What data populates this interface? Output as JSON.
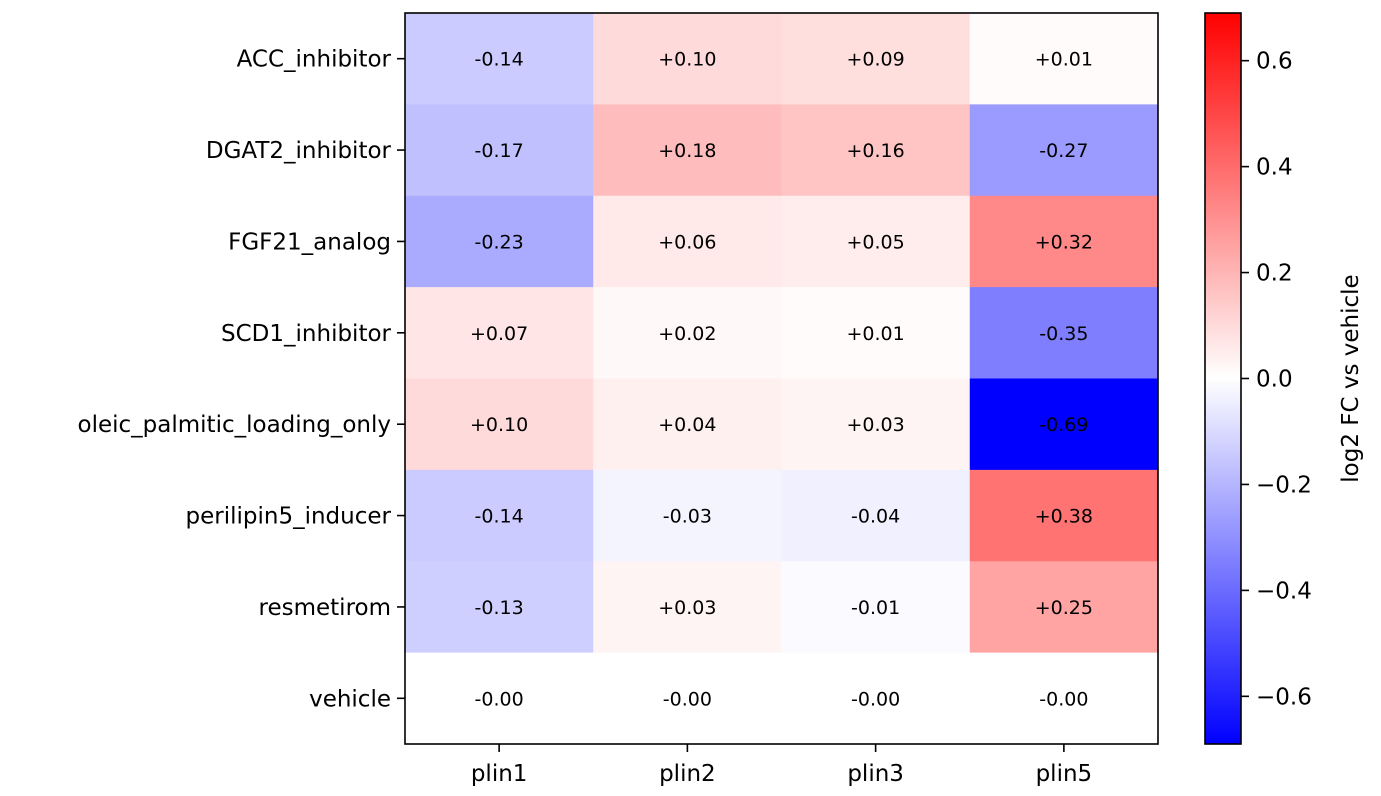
{
  "chart_data": {
    "type": "heatmap",
    "title": "",
    "xlabel": "",
    "ylabel": "",
    "x_categories": [
      "plin1",
      "plin2",
      "plin3",
      "plin5"
    ],
    "y_categories": [
      "ACC_inhibitor",
      "DGAT2_inhibitor",
      "FGF21_analog",
      "SCD1_inhibitor",
      "oleic_palmitic_loading_only",
      "perilipin5_inducer",
      "resmetirom",
      "vehicle"
    ],
    "values": [
      [
        -0.14,
        0.1,
        0.09,
        0.01
      ],
      [
        -0.17,
        0.18,
        0.16,
        -0.27
      ],
      [
        -0.23,
        0.06,
        0.05,
        0.32
      ],
      [
        0.07,
        0.02,
        0.01,
        -0.35
      ],
      [
        0.1,
        0.04,
        0.03,
        -0.69
      ],
      [
        -0.14,
        -0.03,
        -0.04,
        0.38
      ],
      [
        -0.13,
        0.03,
        -0.01,
        0.25
      ],
      [
        -0.0,
        -0.0,
        -0.0,
        -0.0
      ]
    ],
    "cell_labels": [
      [
        "-0.14",
        "+0.10",
        "+0.09",
        "+0.01"
      ],
      [
        "-0.17",
        "+0.18",
        "+0.16",
        "-0.27"
      ],
      [
        "-0.23",
        "+0.06",
        "+0.05",
        "+0.32"
      ],
      [
        "+0.07",
        "+0.02",
        "+0.01",
        "-0.35"
      ],
      [
        "+0.10",
        "+0.04",
        "+0.03",
        "-0.69"
      ],
      [
        "-0.14",
        "-0.03",
        "-0.04",
        "+0.38"
      ],
      [
        "-0.13",
        "+0.03",
        "-0.01",
        "+0.25"
      ],
      [
        "-0.00",
        "-0.00",
        "-0.00",
        "-0.00"
      ]
    ],
    "colormap": "bwr",
    "colormap_low": "#0000ff",
    "colormap_mid": "#ffffff",
    "colormap_high": "#ff0000",
    "vmin": -0.69,
    "vmax": 0.69,
    "colorbar": {
      "label": "log2 FC vs vehicle",
      "ticks": [
        0.6,
        0.4,
        0.2,
        0.0,
        -0.2,
        -0.4,
        -0.6
      ],
      "tick_labels": [
        "0.6",
        "0.4",
        "0.2",
        "0.0",
        "−0.2",
        "−0.4",
        "−0.6"
      ]
    },
    "grid": false
  }
}
